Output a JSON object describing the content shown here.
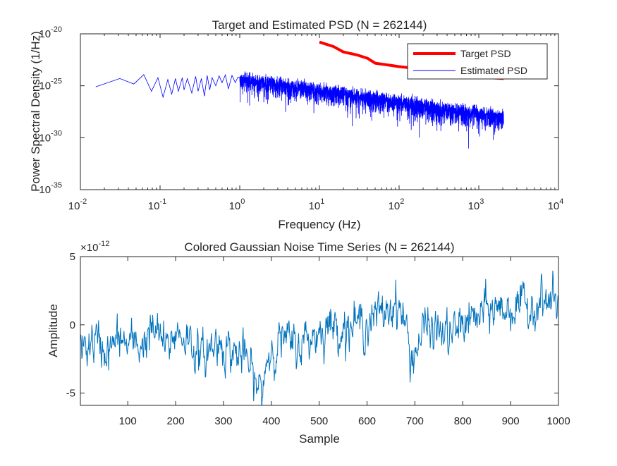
{
  "chart_data": [
    {
      "type": "line",
      "title": "Target and Estimated PSD (N = 262144)",
      "xlabel": "Frequency (Hz)",
      "ylabel": "Power Spectral Density (1/Hz)",
      "xscale": "log",
      "yscale": "log",
      "xlim": [
        0.01,
        10000
      ],
      "ylim": [
        1e-35,
        1e-20
      ],
      "x_tick_labels": [
        {
          "base": "10",
          "exp": "-2"
        },
        {
          "base": "10",
          "exp": "-1"
        },
        {
          "base": "10",
          "exp": "0"
        },
        {
          "base": "10",
          "exp": "1"
        },
        {
          "base": "10",
          "exp": "2"
        },
        {
          "base": "10",
          "exp": "3"
        },
        {
          "base": "10",
          "exp": "4"
        }
      ],
      "y_tick_labels": [
        {
          "base": "10",
          "exp": "-35"
        },
        {
          "base": "10",
          "exp": "-30"
        },
        {
          "base": "10",
          "exp": "-25"
        },
        {
          "base": "10",
          "exp": "-20"
        }
      ],
      "legend_position": "top-right",
      "grid": false,
      "series": [
        {
          "name": "Target PSD",
          "color": "#ff0000",
          "x": [
            10,
            15,
            20,
            30,
            40,
            50,
            80,
            100,
            200,
            300,
            500,
            1000,
            2048
          ],
          "y": [
            1.6e-21,
            6e-22,
            1.8e-22,
            9e-23,
            4.5e-23,
            1.5e-23,
            9e-24,
            7e-24,
            4e-24,
            2.4e-24,
            1.2e-24,
            7e-25,
            5e-25
          ]
        },
        {
          "name": "Estimated PSD",
          "color": "#0000ff",
          "x": [
            0.0156,
            0.03125,
            0.0469,
            0.0625,
            0.078,
            0.094,
            0.109,
            0.125,
            0.14,
            0.156,
            0.17,
            0.19,
            0.2,
            0.22,
            0.25,
            0.28,
            0.3,
            0.33,
            0.36,
            0.39,
            0.42,
            0.45,
            0.5,
            0.55,
            0.6,
            0.66,
            0.72,
            0.8,
            0.88,
            0.95,
            1.0
          ],
          "y": [
            8e-26,
            5e-25,
            1.5e-25,
            1.2e-24,
            3e-26,
            6e-25,
            8e-27,
            4e-25,
            1.5e-26,
            5e-25,
            3e-26,
            6e-25,
            4e-26,
            5e-25,
            2e-26,
            8e-25,
            3e-26,
            5e-25,
            1e-26,
            1e-24,
            4e-26,
            6e-25,
            1e-25,
            9e-25,
            2e-25,
            1.1e-24,
            5e-26,
            1e-24,
            2e-25,
            7e-25,
            6e-25
          ],
          "trend_x": [
            1,
            2048
          ],
          "trend_y": [
            4e-25,
            8e-29
          ],
          "scatter_decades": 1.4
        }
      ]
    },
    {
      "type": "line",
      "title": "Colored Gaussian Noise Time Series (N = 262144)",
      "xlabel": "Sample",
      "ylabel": "Amplitude",
      "xlim": [
        1,
        1000
      ],
      "ylim": [
        -5.9,
        5
      ],
      "y_multiplier": {
        "base": "×10",
        "exp": "-12"
      },
      "x_ticks": [
        100,
        200,
        300,
        400,
        500,
        600,
        700,
        800,
        900,
        1000
      ],
      "y_ticks": [
        -5,
        0,
        5
      ],
      "grid": false,
      "series": [
        {
          "color": "#0072bd",
          "x": [
            1,
            30,
            60,
            80,
            100,
            130,
            150,
            170,
            180,
            200,
            230,
            250,
            290,
            320,
            350,
            360,
            370,
            380,
            390,
            400,
            420,
            450,
            500,
            520,
            550,
            600,
            650,
            660,
            680,
            690,
            700,
            720,
            750,
            780,
            800,
            830,
            850,
            870,
            900,
            940,
            960,
            980,
            1000
          ],
          "y": [
            -1.8,
            -1.2,
            -2.0,
            -1.0,
            -1.5,
            -1.4,
            -0.5,
            -0.8,
            -2.0,
            -0.5,
            -1.0,
            -2.5,
            -1.2,
            -2.0,
            -2.5,
            -3.8,
            -4.5,
            -5.0,
            -2.5,
            -1.8,
            -1.0,
            -1.6,
            -0.5,
            0.0,
            -0.2,
            0.2,
            1.2,
            1.8,
            0.2,
            -2.5,
            -2.0,
            -0.2,
            -0.5,
            -0.8,
            0.2,
            0.5,
            1.0,
            1.2,
            1.2,
            1.3,
            1.8,
            1.6,
            1.6
          ],
          "noise_amplitude": 0.9
        }
      ]
    }
  ]
}
